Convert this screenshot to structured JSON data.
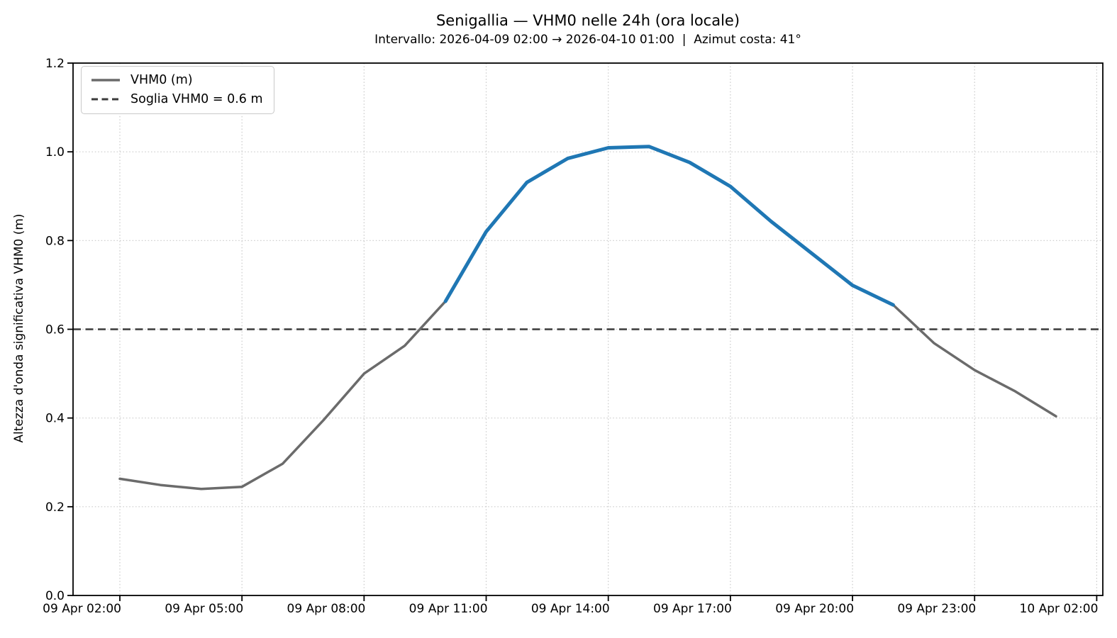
{
  "header": {
    "title": "Senigallia — VHM0 nelle 24h (ora locale)",
    "subtitle": "Intervallo: 2026-04-09 02:00 → 2026-04-10 01:00  |  Azimut costa: 41°"
  },
  "legend": {
    "items": [
      {
        "label": "VHM0 (m)",
        "style": "solid",
        "color": "#6b6b6b"
      },
      {
        "label": "Soglia VHM0 = 0.6 m",
        "style": "dashed",
        "color": "#3a3a3a"
      }
    ]
  },
  "chart_data": {
    "type": "line",
    "title": "Senigallia — VHM0 nelle 24h (ora locale)",
    "subtitle": "Intervallo: 2026-04-09 02:00 → 2026-04-10 01:00  |  Azimut costa: 41°",
    "xlabel": "",
    "ylabel": "Altezza d'onda significativa VHM0 (m)",
    "ylim": [
      0.0,
      1.2
    ],
    "yticks": [
      0.0,
      0.2,
      0.4,
      0.6,
      0.8,
      1.0,
      1.2
    ],
    "grid": true,
    "legend_position": "upper left",
    "x": [
      "2026-04-09 02:00",
      "2026-04-09 03:00",
      "2026-04-09 04:00",
      "2026-04-09 05:00",
      "2026-04-09 06:00",
      "2026-04-09 07:00",
      "2026-04-09 08:00",
      "2026-04-09 09:00",
      "2026-04-09 10:00",
      "2026-04-09 11:00",
      "2026-04-09 12:00",
      "2026-04-09 13:00",
      "2026-04-09 14:00",
      "2026-04-09 15:00",
      "2026-04-09 16:00",
      "2026-04-09 17:00",
      "2026-04-09 18:00",
      "2026-04-09 19:00",
      "2026-04-09 20:00",
      "2026-04-09 21:00",
      "2026-04-09 22:00",
      "2026-04-09 23:00",
      "2026-04-10 00:00",
      "2026-04-10 01:00"
    ],
    "series": [
      {
        "name": "VHM0 (m)",
        "values": [
          0.263,
          0.249,
          0.24,
          0.245,
          0.297,
          0.395,
          0.5,
          0.563,
          0.663,
          0.82,
          0.931,
          0.985,
          1.009,
          1.012,
          0.976,
          0.922,
          0.843,
          0.771,
          0.699,
          0.655,
          0.569,
          0.508,
          0.46,
          0.404
        ]
      }
    ],
    "threshold": {
      "label": "Soglia VHM0 = 0.6 m",
      "value": 0.6
    },
    "highlight_rule": "segments whose endpoints are both ≥ 0.6 m are drawn thicker in blue",
    "xticks": {
      "hour_offsets": [
        0,
        3,
        6,
        9,
        12,
        15,
        18,
        21,
        24
      ],
      "labels": [
        "09 Apr 02:00",
        "09 Apr 05:00",
        "09 Apr 08:00",
        "09 Apr 11:00",
        "09 Apr 14:00",
        "09 Apr 17:00",
        "09 Apr 20:00",
        "09 Apr 23:00",
        "10 Apr 02:00"
      ]
    },
    "colors": {
      "line": "#6b6b6b",
      "line_above_threshold": "#1f77b4",
      "threshold_line": "#3a3a3a",
      "grid": "#cccccc",
      "spine": "#000000"
    }
  }
}
